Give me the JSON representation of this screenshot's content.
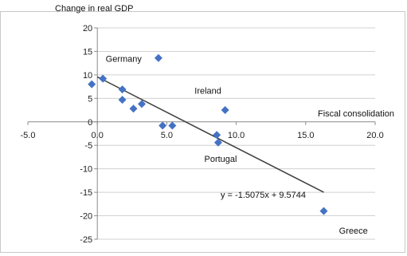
{
  "chart_data": {
    "type": "scatter",
    "title": "",
    "ylabel": "Change in real GDP",
    "xlabel": "Fiscal consolidation",
    "xlim": [
      -5,
      20
    ],
    "ylim": [
      -25,
      20
    ],
    "x_ticks": [
      -5,
      0,
      5,
      10,
      15,
      20
    ],
    "x_tick_labels": [
      "-5.0",
      "0.0",
      "5.0",
      "10.0",
      "15.0",
      "20.0"
    ],
    "y_ticks": [
      -25,
      -20,
      -15,
      -10,
      -5,
      0,
      5,
      10,
      15,
      20
    ],
    "y_tick_labels": [
      "-25",
      "-20",
      "-15",
      "-10",
      "-5",
      "0",
      "5",
      "10",
      "15",
      "20"
    ],
    "grid": "horizontal",
    "marker_color": "#4472c4",
    "points": [
      {
        "x": -0.4,
        "y": 8.0
      },
      {
        "x": 0.4,
        "y": 9.2
      },
      {
        "x": 1.8,
        "y": 6.9
      },
      {
        "x": 1.8,
        "y": 4.7
      },
      {
        "x": 2.6,
        "y": 2.8
      },
      {
        "x": 3.2,
        "y": 3.8
      },
      {
        "x": 4.4,
        "y": 13.6
      },
      {
        "x": 4.7,
        "y": -0.8
      },
      {
        "x": 5.4,
        "y": -0.8
      },
      {
        "x": 8.6,
        "y": -2.8
      },
      {
        "x": 8.7,
        "y": -4.4
      },
      {
        "x": 9.2,
        "y": 2.5
      },
      {
        "x": 16.3,
        "y": -19.0
      }
    ],
    "trendline": {
      "slope": -1.5075,
      "intercept": 9.5744,
      "x_range": [
        0,
        16.3
      ],
      "equation": "y = -1.5075x + 9.5744",
      "color": "#404040"
    },
    "annotations": [
      {
        "text": "Germany",
        "x": 0.6,
        "y": 12.8
      },
      {
        "text": "Ireland",
        "x": 7.0,
        "y": 6.0
      },
      {
        "text": "Portugal",
        "x": 7.7,
        "y": -8.5
      },
      {
        "text": "Greece",
        "x": 17.4,
        "y": -23.8
      }
    ]
  }
}
